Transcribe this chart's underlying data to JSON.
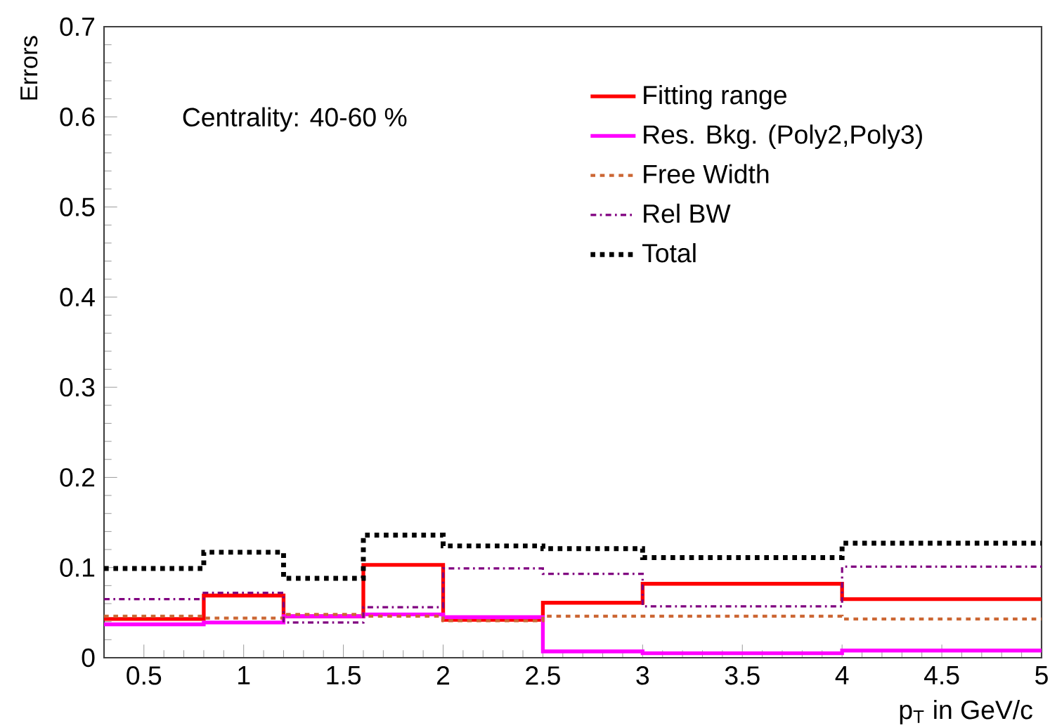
{
  "chart_data": {
    "type": "histogram",
    "xlabel": "p$_{T}$ in GeV/c",
    "ylabel": "Errors",
    "annotations": [
      "Centrality: 40-60 %"
    ],
    "bins": [
      0.3,
      0.8,
      1.2,
      1.6,
      2.0,
      2.5,
      3.0,
      4.0,
      5.0
    ],
    "series": [
      {
        "name": "Fitting range",
        "color": "#ff0000",
        "line_style": "solid",
        "values": [
          0.043,
          0.069,
          0.046,
          0.103,
          0.042,
          0.061,
          0.082,
          0.065
        ]
      },
      {
        "name": "Res. Bkg. (Poly2,Poly3)",
        "color": "#ff00ff",
        "line_style": "solid",
        "values": [
          0.037,
          0.039,
          0.046,
          0.048,
          0.045,
          0.007,
          0.005,
          0.008
        ]
      },
      {
        "name": "Free Width",
        "color": "#cc6633",
        "line_style": "dotted",
        "values": [
          0.046,
          0.044,
          0.048,
          0.046,
          0.041,
          0.046,
          0.046,
          0.043
        ]
      },
      {
        "name": "Rel BW",
        "color": "#800080",
        "line_style": "dashdot",
        "values": [
          0.065,
          0.072,
          0.039,
          0.056,
          0.099,
          0.093,
          0.057,
          0.101
        ]
      },
      {
        "name": "Total",
        "color": "#000000",
        "line_style": "dotted",
        "values": [
          0.099,
          0.117,
          0.088,
          0.136,
          0.124,
          0.121,
          0.111,
          0.127
        ]
      }
    ],
    "xlim": [
      0.3,
      5
    ],
    "ylim": [
      0,
      0.7
    ],
    "xticks": [
      0.5,
      1,
      1.5,
      2,
      2.5,
      3,
      3.5,
      4,
      4.5,
      5
    ],
    "yticks": [
      0,
      0.1,
      0.2,
      0.3,
      0.4,
      0.5,
      0.6,
      0.7
    ],
    "legend": "top right",
    "grid": false
  }
}
